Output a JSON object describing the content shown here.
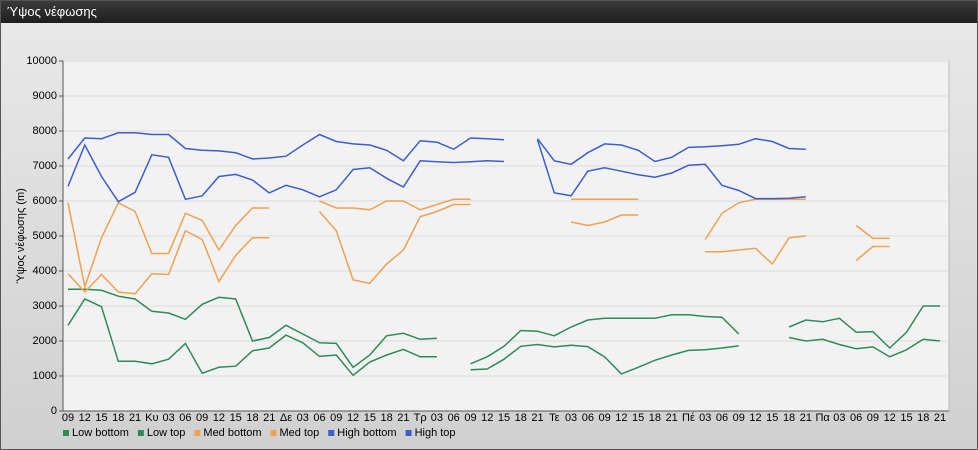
{
  "chart_data": {
    "type": "line",
    "title": "Ύψος νέφωσης",
    "y_label": "Ύψος νέφωσης (m)",
    "categories": [
      "09",
      "12",
      "15",
      "18",
      "21",
      "Κυ",
      "03",
      "06",
      "09",
      "12",
      "15",
      "18",
      "21",
      "Δε",
      "03",
      "06",
      "09",
      "12",
      "15",
      "18",
      "21",
      "Τρ",
      "03",
      "06",
      "09",
      "12",
      "15",
      "18",
      "21",
      "Τε",
      "03",
      "06",
      "09",
      "12",
      "15",
      "18",
      "21",
      "Πέ",
      "03",
      "06",
      "09",
      "12",
      "15",
      "18",
      "21",
      "Πα",
      "03",
      "06",
      "09",
      "12",
      "15",
      "18",
      "21"
    ],
    "ylim": [
      0,
      10000
    ],
    "yticks": [
      0,
      1000,
      2000,
      3000,
      4000,
      5000,
      6000,
      7000,
      8000,
      9000,
      10000
    ],
    "grid": true,
    "legend": "bottom-left",
    "series": [
      {
        "name": "Low bottom",
        "color": "#2e8b57",
        "values": [
          2450,
          3200,
          2980,
          1420,
          1420,
          1350,
          1480,
          1930,
          1080,
          1250,
          1280,
          1720,
          1800,
          2170,
          1950,
          1560,
          1600,
          1020,
          1400,
          1600,
          1760,
          1550,
          1550,
          null,
          1180,
          1200,
          1480,
          1850,
          1900,
          1830,
          1880,
          1840,
          1550,
          1060,
          1250,
          1450,
          1600,
          1730,
          1750,
          1800,
          1860,
          null,
          null,
          2100,
          2000,
          2050,
          1900,
          1780,
          1830,
          1550,
          1750,
          2050,
          2000
        ]
      },
      {
        "name": "Low top",
        "color": "#2e8b57",
        "values": [
          3480,
          3480,
          3450,
          3280,
          3200,
          2850,
          2800,
          2620,
          3050,
          3250,
          3200,
          2000,
          2100,
          2450,
          2200,
          1950,
          1930,
          1250,
          1600,
          2150,
          2220,
          2050,
          2080,
          null,
          1350,
          1550,
          1850,
          2300,
          2280,
          2150,
          2400,
          2600,
          2650,
          2650,
          2650,
          2650,
          2750,
          2750,
          2700,
          2680,
          2200,
          null,
          null,
          2400,
          2600,
          2550,
          2650,
          2250,
          2270,
          1800,
          2250,
          3000,
          3000
        ]
      },
      {
        "name": "Med bottom",
        "color": "#f0a050",
        "values": [
          3920,
          3400,
          3900,
          3400,
          3350,
          3920,
          3900,
          5150,
          4900,
          3700,
          4450,
          4950,
          4950,
          null,
          null,
          5700,
          5150,
          3750,
          3650,
          4200,
          4600,
          5550,
          5700,
          5900,
          5900,
          null,
          null,
          null,
          null,
          null,
          5400,
          5300,
          5400,
          5600,
          5600,
          null,
          null,
          null,
          4550,
          4550,
          4600,
          4650,
          4200,
          4950,
          5000,
          null,
          null,
          4300,
          4700,
          4700,
          null,
          null,
          null
        ]
      },
      {
        "name": "Med top",
        "color": "#f0a050",
        "values": [
          5950,
          3550,
          4950,
          5950,
          5700,
          4500,
          4500,
          5650,
          5450,
          4600,
          5300,
          5800,
          5800,
          null,
          null,
          6000,
          5800,
          5800,
          5750,
          6000,
          6000,
          5750,
          5900,
          6050,
          6050,
          null,
          null,
          null,
          null,
          null,
          6050,
          6050,
          6050,
          6050,
          6050,
          null,
          null,
          null,
          4900,
          5650,
          5950,
          6050,
          6050,
          6050,
          6050,
          null,
          null,
          5300,
          4930,
          4930,
          null,
          null,
          null
        ]
      },
      {
        "name": "High bottom",
        "color": "#3a5fcd",
        "values": [
          6420,
          7600,
          6700,
          5980,
          6250,
          7320,
          7250,
          6050,
          6150,
          6700,
          6760,
          6600,
          6230,
          6450,
          6320,
          6120,
          6320,
          6900,
          6950,
          6650,
          6400,
          7150,
          7120,
          7100,
          7120,
          7150,
          7130,
          null,
          7750,
          6230,
          6150,
          6850,
          6950,
          6850,
          6750,
          6680,
          6800,
          7020,
          7050,
          6450,
          6300,
          6070,
          6070,
          6080,
          6120,
          null,
          null,
          null,
          null,
          null,
          null,
          null,
          null
        ]
      },
      {
        "name": "High top",
        "color": "#3a5fcd",
        "values": [
          7200,
          7800,
          7780,
          7950,
          7950,
          7900,
          7900,
          7500,
          7450,
          7430,
          7380,
          7200,
          7230,
          7280,
          7600,
          7900,
          7700,
          7630,
          7600,
          7450,
          7150,
          7720,
          7680,
          7480,
          7800,
          7780,
          7750,
          null,
          7780,
          7150,
          7050,
          7380,
          7630,
          7600,
          7450,
          7130,
          7250,
          7530,
          7550,
          7580,
          7620,
          7780,
          7700,
          7500,
          7480,
          null,
          null,
          null,
          null,
          null,
          null,
          null,
          null
        ]
      }
    ]
  }
}
